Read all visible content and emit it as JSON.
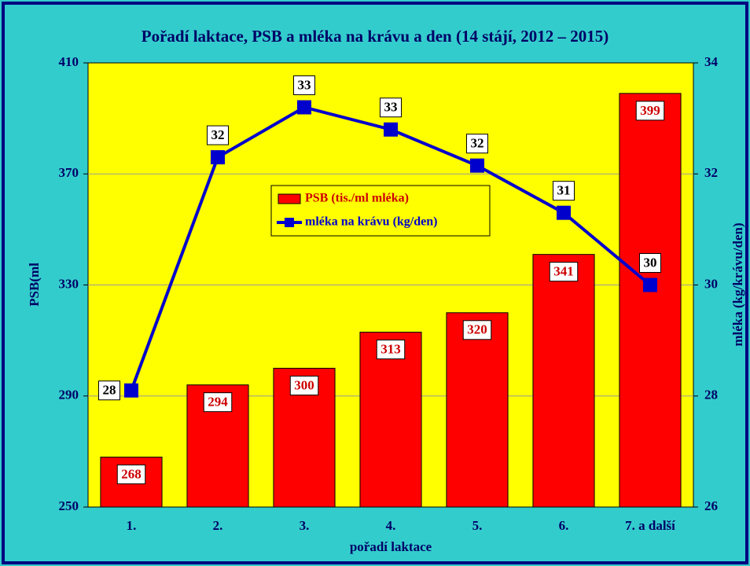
{
  "chart_data": {
    "type": "bar",
    "title": "Pořadí laktace, PSB a mléka na krávu a den (14 stájí, 2012 – 2015)",
    "xlabel": "pořadí laktace",
    "ylabel": "PSB(ml",
    "y2label": "mléka (kg/krávu/den)",
    "categories": [
      "1.",
      "2.",
      "3.",
      "4.",
      "5.",
      "6.",
      "7. a další"
    ],
    "series": [
      {
        "name": "PSB (tis./ml mléka)",
        "type": "bar",
        "color": "#ff0000",
        "values": [
          268,
          294,
          300,
          313,
          320,
          341,
          399
        ]
      },
      {
        "name": "mléka na krávu (kg/den)",
        "type": "line",
        "axis": "y2",
        "color": "#0000cc",
        "values": [
          28.1,
          32.3,
          33.2,
          32.8,
          32.15,
          31.3,
          30.0
        ],
        "value_labels": [
          "28",
          "32",
          "33",
          "33",
          "32",
          "31",
          "30"
        ]
      }
    ],
    "ylim": [
      250,
      410
    ],
    "yticks": [
      250,
      290,
      330,
      370,
      410
    ],
    "y2lim": [
      26,
      34
    ],
    "y2ticks": [
      26,
      28,
      30,
      32,
      34
    ],
    "grid": true
  }
}
